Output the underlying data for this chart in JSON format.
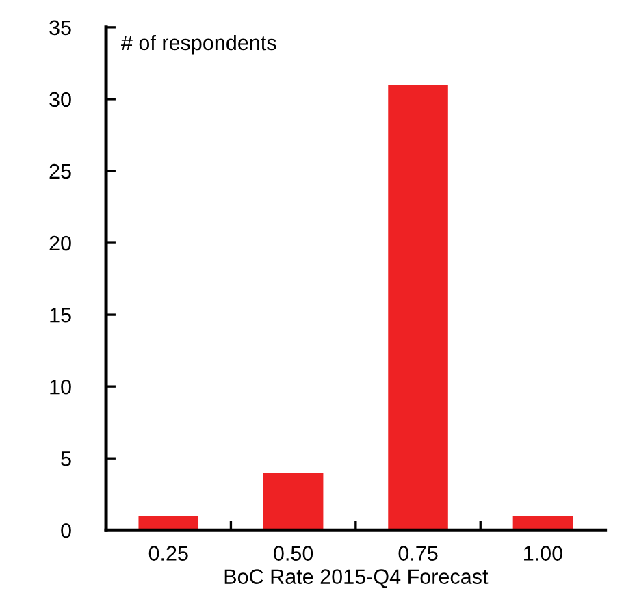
{
  "chart_data": {
    "type": "bar",
    "xlabel": "BoC Rate 2015-Q4 Forecast",
    "ylabel": "# of respondents",
    "categories": [
      "0.25",
      "0.50",
      "0.75",
      "1.00"
    ],
    "values": [
      1,
      4,
      31,
      1
    ],
    "color": "#ee2224",
    "ylim": [
      0,
      35
    ],
    "yticks": [
      0,
      5,
      10,
      15,
      20,
      25,
      30,
      35
    ],
    "grid": false,
    "legend": false
  }
}
